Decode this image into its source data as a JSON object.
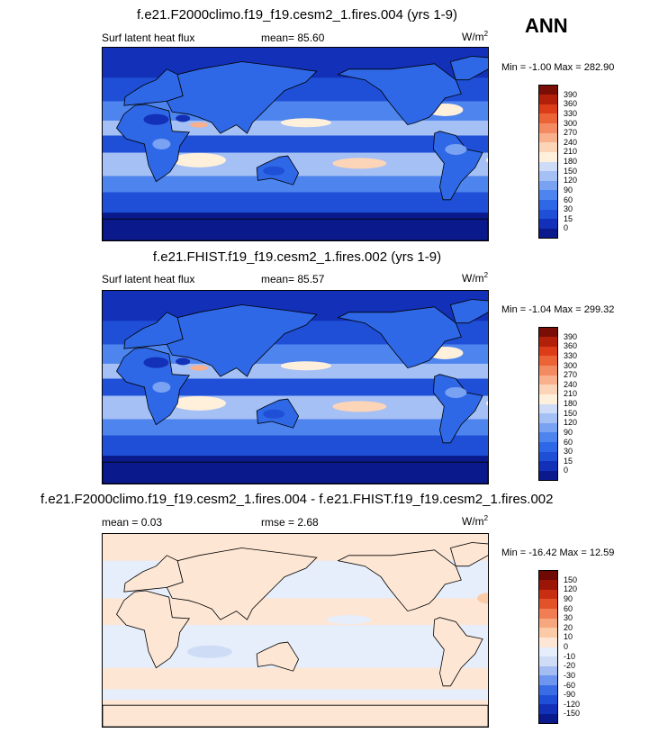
{
  "season": "ANN",
  "panels": [
    {
      "title": "f.e21.F2000climo.f19_f19.cesm2_1.fires.004 (yrs 1-9)",
      "left_label": "Surf latent heat flux",
      "stat_label": "mean=  85.60",
      "units_base": "W/m",
      "units_exp": "2",
      "minmax": "Min =  -1.00 Max = 282.90",
      "kind": "abs"
    },
    {
      "title": "f.e21.FHIST.f19_f19.cesm2_1.fires.002 (yrs 1-9)",
      "left_label": "Surf latent heat flux",
      "stat_label": "mean=  85.57",
      "units_base": "W/m",
      "units_exp": "2",
      "minmax": "Min =  -1.04 Max = 299.32",
      "kind": "abs"
    },
    {
      "title": "f.e21.F2000climo.f19_f19.cesm2_1.fires.004 - f.e21.FHIST.f19_f19.cesm2_1.fires.002",
      "left_label": "mean =  0.03",
      "stat_label": "rmse =  2.68",
      "units_base": "W/m",
      "units_exp": "2",
      "minmax": "Min = -16.42 Max =  12.59",
      "kind": "diff"
    }
  ],
  "chart_data": [
    {
      "type": "heatmap",
      "title": "f.e21.F2000climo.f19_f19.cesm2_1.fires.004 (yrs 1-9)",
      "variable": "Surf latent heat flux",
      "mean": 85.6,
      "min": -1.0,
      "max": 282.9,
      "units": "W/m2",
      "colorbar_levels": [
        0,
        15,
        30,
        60,
        90,
        120,
        150,
        180,
        210,
        240,
        270,
        300,
        330,
        360,
        390
      ],
      "colors": [
        "#0a1a8c",
        "#1330b8",
        "#1e4fd6",
        "#2f68e6",
        "#4d84ee",
        "#7aa2f2",
        "#a4c0f5",
        "#cfdcf7",
        "#fff0dc",
        "#fcd4b8",
        "#f9b08c",
        "#f48a62",
        "#ec6336",
        "#dc3c17",
        "#b3200a",
        "#7a0d05"
      ]
    },
    {
      "type": "heatmap",
      "title": "f.e21.FHIST.f19_f19.cesm2_1.fires.002 (yrs 1-9)",
      "variable": "Surf latent heat flux",
      "mean": 85.57,
      "min": -1.04,
      "max": 299.32,
      "units": "W/m2",
      "colorbar_levels": [
        0,
        15,
        30,
        60,
        90,
        120,
        150,
        180,
        210,
        240,
        270,
        300,
        330,
        360,
        390
      ],
      "colors": [
        "#0a1a8c",
        "#1330b8",
        "#1e4fd6",
        "#2f68e6",
        "#4d84ee",
        "#7aa2f2",
        "#a4c0f5",
        "#cfdcf7",
        "#fff0dc",
        "#fcd4b8",
        "#f9b08c",
        "#f48a62",
        "#ec6336",
        "#dc3c17",
        "#b3200a",
        "#7a0d05"
      ]
    },
    {
      "type": "heatmap",
      "title": "f.e21.F2000climo.f19_f19.cesm2_1.fires.004 - f.e21.FHIST.f19_f19.cesm2_1.fires.002",
      "mean": 0.03,
      "rmse": 2.68,
      "min": -16.42,
      "max": 12.59,
      "units": "W/m2",
      "colorbar_levels": [
        -150,
        -120,
        -90,
        -60,
        -30,
        -20,
        -10,
        0,
        10,
        20,
        30,
        60,
        90,
        120,
        150
      ],
      "colors": [
        "#0a1a8c",
        "#1330b8",
        "#1e4fd6",
        "#3a6ce6",
        "#6f96ef",
        "#a3bdf3",
        "#cfdcf6",
        "#e6eefb",
        "#fde6d4",
        "#fbcba8",
        "#f7a77d",
        "#f07e52",
        "#e3532a",
        "#c82f12",
        "#9c1608",
        "#6e0903"
      ]
    }
  ]
}
